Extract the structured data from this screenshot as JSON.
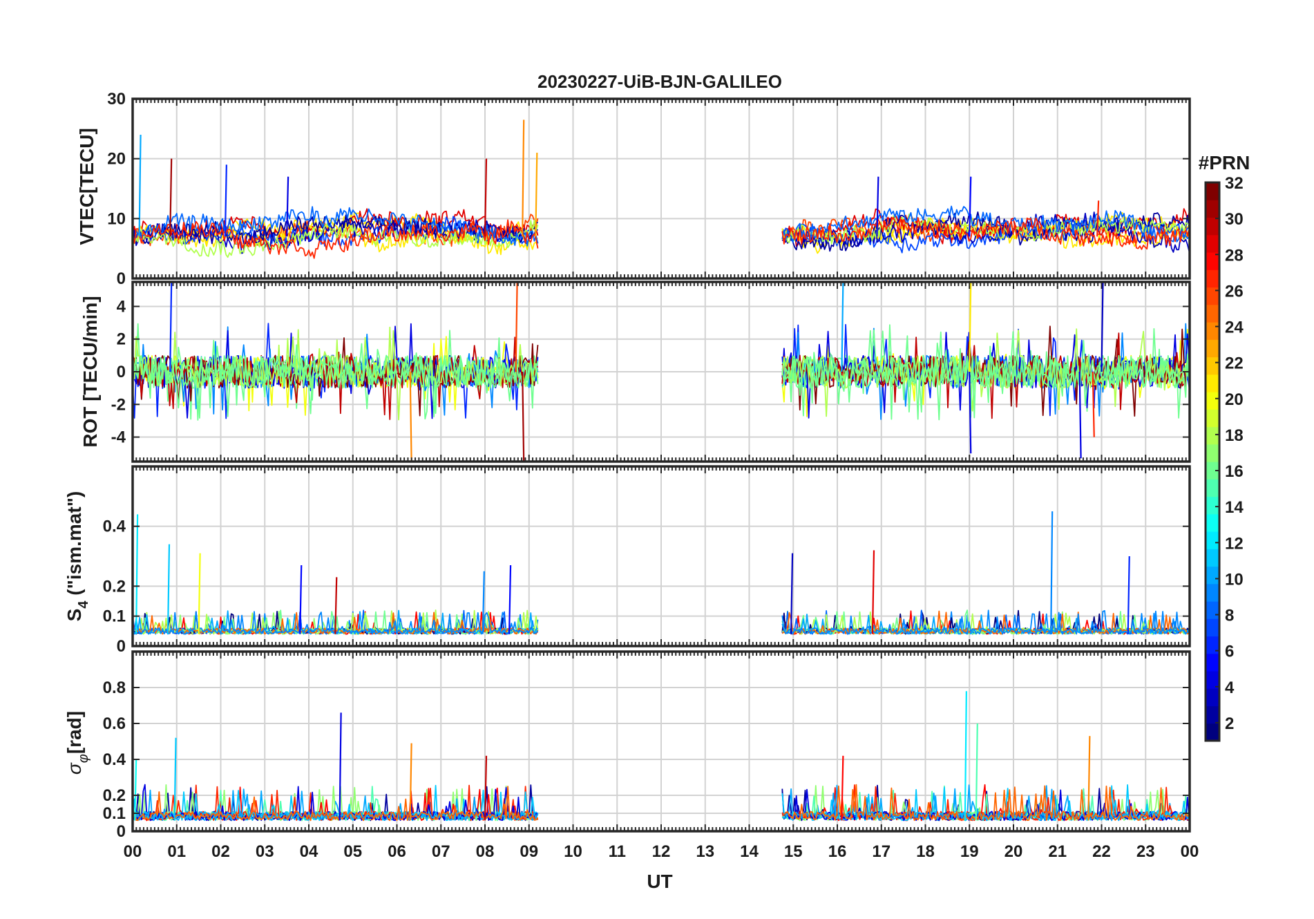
{
  "chart_data": {
    "title": "20230227-UiB-BJN-GALILEO",
    "xlabel": "UT",
    "x_tick_labels": [
      "00",
      "01",
      "02",
      "03",
      "04",
      "05",
      "06",
      "07",
      "08",
      "09",
      "10",
      "11",
      "12",
      "13",
      "14",
      "15",
      "16",
      "17",
      "18",
      "19",
      "20",
      "21",
      "22",
      "23",
      "00"
    ],
    "xlim": [
      0,
      24
    ],
    "data_gaps": [
      [
        9.2,
        14.75
      ]
    ],
    "panels": [
      {
        "id": "vtec",
        "type": "line",
        "ylabel": "VTEC[TECU]",
        "ylim": [
          0,
          30
        ],
        "yticks": [
          0,
          10,
          20,
          30
        ],
        "ytick_labels": [
          "0",
          "10",
          "20",
          "30"
        ],
        "baseline": 7,
        "noise_amplitude": 2.5,
        "peaks": [
          {
            "t": 0.15,
            "v": 24,
            "prn": 10
          },
          {
            "t": 0.85,
            "v": 20,
            "prn": 31
          },
          {
            "t": 2.1,
            "v": 19,
            "prn": 6
          },
          {
            "t": 3.5,
            "v": 17,
            "prn": 4
          },
          {
            "t": 8.0,
            "v": 20,
            "prn": 30
          },
          {
            "t": 8.85,
            "v": 26.5,
            "prn": 24
          },
          {
            "t": 9.15,
            "v": 21,
            "prn": 23
          },
          {
            "t": 16.9,
            "v": 17,
            "prn": 4
          },
          {
            "t": 19.0,
            "v": 17,
            "prn": 5
          },
          {
            "t": 21.9,
            "v": 13,
            "prn": 27
          }
        ]
      },
      {
        "id": "rot",
        "type": "line",
        "ylabel": "ROT [TECU/min]",
        "ylim": [
          -5.5,
          5.5
        ],
        "yticks": [
          -4,
          -2,
          0,
          2,
          4
        ],
        "ytick_labels": [
          "-4",
          "-2",
          "0",
          "2",
          "4"
        ],
        "baseline": 0,
        "noise_amplitude": 1.0,
        "peaks": [
          {
            "t": 0.85,
            "v": 5.5,
            "prn": 6
          },
          {
            "t": 6.3,
            "v": -5.5,
            "prn": 24
          },
          {
            "t": 8.7,
            "v": 5.5,
            "prn": 26
          },
          {
            "t": 8.85,
            "v": -5.5,
            "prn": 31
          },
          {
            "t": 16.1,
            "v": 5.5,
            "prn": 10
          },
          {
            "t": 19.0,
            "v": 5.5,
            "prn": 21
          },
          {
            "t": 19.0,
            "v": -5.0,
            "prn": 4
          },
          {
            "t": 21.5,
            "v": -5.3,
            "prn": 4
          },
          {
            "t": 21.8,
            "v": -4.0,
            "prn": 27
          },
          {
            "t": 22.0,
            "v": 5.5,
            "prn": 3
          }
        ]
      },
      {
        "id": "s4",
        "type": "line",
        "ylabel": "S4 (\"ism.mat\")",
        "ylim": [
          0,
          0.6
        ],
        "yticks": [
          0,
          0.1,
          0.2,
          0.4
        ],
        "ytick_labels": [
          "0",
          "0.1",
          "0.2",
          "0.4"
        ],
        "baseline": 0.04,
        "noise_amplitude": 0.02,
        "peaks": [
          {
            "t": 0.08,
            "v": 0.44,
            "prn": 12
          },
          {
            "t": 0.8,
            "v": 0.34,
            "prn": 11
          },
          {
            "t": 1.5,
            "v": 0.31,
            "prn": 20
          },
          {
            "t": 3.8,
            "v": 0.27,
            "prn": 5
          },
          {
            "t": 4.6,
            "v": 0.23,
            "prn": 30
          },
          {
            "t": 7.95,
            "v": 0.25,
            "prn": 9
          },
          {
            "t": 8.55,
            "v": 0.27,
            "prn": 5
          },
          {
            "t": 14.95,
            "v": 0.31,
            "prn": 3
          },
          {
            "t": 16.8,
            "v": 0.32,
            "prn": 29
          },
          {
            "t": 20.85,
            "v": 0.45,
            "prn": 9
          },
          {
            "t": 22.6,
            "v": 0.3,
            "prn": 6
          }
        ]
      },
      {
        "id": "sigma_phi",
        "type": "line",
        "ylabel": "σφ[rad]",
        "ylim": [
          0,
          1.0
        ],
        "yticks": [
          0,
          0.1,
          0.2,
          0.4,
          0.6,
          0.8
        ],
        "ytick_labels": [
          "0",
          "0.1",
          "0.2",
          "0.4",
          "0.6",
          "0.8"
        ],
        "baseline": 0.06,
        "noise_amplitude": 0.05,
        "peaks": [
          {
            "t": 0.05,
            "v": 0.4,
            "prn": 13
          },
          {
            "t": 0.95,
            "v": 0.52,
            "prn": 11
          },
          {
            "t": 4.7,
            "v": 0.66,
            "prn": 4
          },
          {
            "t": 6.3,
            "v": 0.49,
            "prn": 24
          },
          {
            "t": 8.0,
            "v": 0.42,
            "prn": 30
          },
          {
            "t": 16.1,
            "v": 0.42,
            "prn": 28
          },
          {
            "t": 18.9,
            "v": 0.78,
            "prn": 12
          },
          {
            "t": 19.15,
            "v": 0.6,
            "prn": 15
          },
          {
            "t": 21.7,
            "v": 0.53,
            "prn": 24
          }
        ]
      }
    ],
    "colorbar": {
      "title": "#PRN",
      "range": [
        1,
        32
      ],
      "ticks": [
        2,
        4,
        6,
        8,
        10,
        12,
        14,
        16,
        18,
        20,
        22,
        24,
        26,
        28,
        30,
        32
      ],
      "tick_labels": [
        "2",
        "4",
        "6",
        "8",
        "10",
        "12",
        "14",
        "16",
        "18",
        "20",
        "22",
        "24",
        "26",
        "28",
        "30",
        "32"
      ],
      "colormap": "jet"
    },
    "colors": {
      "grid": "#d2d2d2",
      "axis": "#262626",
      "jet_stops": [
        "#00007f",
        "#0000ff",
        "#007fff",
        "#00ffff",
        "#7fff7f",
        "#ffff00",
        "#ff7f00",
        "#ff0000",
        "#7f0000"
      ]
    }
  }
}
